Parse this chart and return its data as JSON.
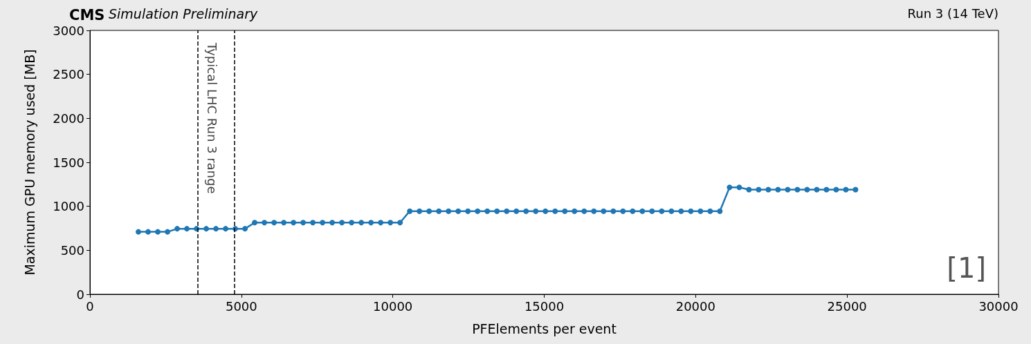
{
  "chart_data": {
    "type": "line",
    "title": "CMS",
    "subtitle": "Simulation Preliminary",
    "xlabel": "PFElements per event",
    "ylabel": "Maximum GPU memory used [MB]",
    "annotations": [
      "Run 3 (14 TeV)",
      "[1]"
    ],
    "x": [
      1600,
      1920,
      2240,
      2560,
      2880,
      3200,
      3520,
      3840,
      4160,
      4480,
      4800,
      5120,
      5440,
      5760,
      6080,
      6400,
      6720,
      7040,
      7360,
      7680,
      8000,
      8320,
      8640,
      8960,
      9280,
      9600,
      9920,
      10240,
      10560,
      10880,
      11200,
      11520,
      11840,
      12160,
      12480,
      12800,
      13120,
      13440,
      13760,
      14080,
      14400,
      14720,
      15040,
      15360,
      15680,
      16000,
      16320,
      16640,
      16960,
      17280,
      17600,
      17920,
      18240,
      18560,
      18880,
      19200,
      19520,
      19840,
      20160,
      20480,
      20800,
      21120,
      21440,
      21760,
      22080,
      22400,
      22720,
      23040,
      23360,
      23680,
      24000,
      24320,
      24640,
      24960,
      25280
    ],
    "series": [
      {
        "color": "#1f77b4",
        "values": [
          710,
          710,
          710,
          710,
          745,
          745,
          745,
          745,
          745,
          745,
          745,
          745,
          815,
          815,
          815,
          815,
          815,
          815,
          815,
          815,
          815,
          815,
          815,
          815,
          815,
          815,
          815,
          815,
          945,
          945,
          945,
          945,
          945,
          945,
          945,
          945,
          945,
          945,
          945,
          945,
          945,
          945,
          945,
          945,
          945,
          945,
          945,
          945,
          945,
          945,
          945,
          945,
          945,
          945,
          945,
          945,
          945,
          945,
          945,
          945,
          945,
          1215,
          1215,
          1190,
          1190,
          1190,
          1190,
          1190,
          1190,
          1190,
          1190,
          1190,
          1190,
          1190,
          1190
        ]
      }
    ],
    "xlim": [
      0,
      30000
    ],
    "xticks": [
      0,
      5000,
      10000,
      15000,
      20000,
      25000,
      30000
    ],
    "ylim": [
      0,
      3000
    ],
    "yticks": [
      0,
      500,
      1000,
      1500,
      2000,
      2500,
      3000
    ],
    "ref_lines": [
      {
        "axis": "x",
        "value": 3560,
        "label": "Typical LHC Run 3 range",
        "color": "#000000",
        "line_style": "dashed"
      },
      {
        "axis": "x",
        "value": 4780,
        "color": "#000000",
        "line_style": "dashed"
      }
    ],
    "grid": false,
    "marker": "circle",
    "line_style": "solid"
  }
}
